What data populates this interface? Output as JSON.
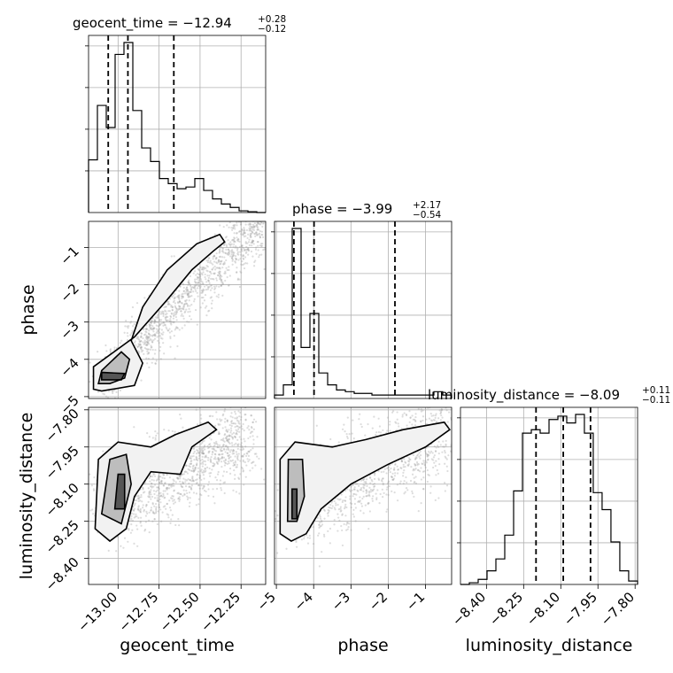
{
  "chart_data": {
    "type": "corner",
    "parameters": [
      "geocent_time",
      "phase",
      "luminosity_distance"
    ],
    "titles": [
      {
        "text": "geocent_time = −12.94",
        "upper": "+0.28",
        "lower": "−0.12"
      },
      {
        "text": "phase = −3.99",
        "upper": "+2.17",
        "lower": "−0.54"
      },
      {
        "text": "luminosity_distance = −8.09",
        "upper": "+0.11",
        "lower": "−0.11"
      }
    ],
    "axis_labels": {
      "x": [
        "geocent_time",
        "phase",
        "luminosity_distance"
      ],
      "y": [
        "phase",
        "luminosity_distance"
      ]
    },
    "ticks": {
      "geocent_time": {
        "values": [
          -13.0,
          -12.75,
          -12.5,
          -12.25
        ],
        "labels": [
          "−13.00",
          "−12.75",
          "−12.50",
          "−12.25"
        ]
      },
      "phase": {
        "values": [
          -5,
          -4,
          -3,
          -2,
          -1
        ],
        "labels": [
          "−5",
          "−4",
          "−3",
          "−2",
          "−1"
        ]
      },
      "luminosity_distance": {
        "values": [
          -8.4,
          -8.25,
          -8.1,
          -7.95,
          -7.8
        ],
        "labels": [
          "−8.40",
          "−8.25",
          "−8.10",
          "−7.95",
          "−7.80"
        ]
      }
    },
    "ranges": {
      "geocent_time": [
        -13.18,
        -12.1
      ],
      "phase": [
        -5.05,
        -0.3
      ],
      "luminosity_distance": [
        -8.505,
        -7.79
      ]
    },
    "histograms": [
      {
        "parameter": "geocent_time",
        "bin_edges": [
          -13.18,
          -13.126,
          -13.072,
          -13.018,
          -12.964,
          -12.91,
          -12.856,
          -12.802,
          -12.748,
          -12.694,
          -12.64,
          -12.586,
          -12.532,
          -12.478,
          -12.424,
          -12.37,
          -12.316,
          -12.262,
          -12.208,
          -12.154,
          -12.1
        ],
        "counts": [
          0.31,
          0.63,
          0.5,
          0.93,
          1.0,
          0.6,
          0.38,
          0.3,
          0.2,
          0.17,
          0.14,
          0.15,
          0.2,
          0.13,
          0.08,
          0.05,
          0.03,
          0.01,
          0.005,
          0.0
        ],
        "quantiles": [
          -13.06,
          -12.94,
          -12.66
        ]
      },
      {
        "parameter": "phase",
        "bin_edges": [
          -5.05,
          -4.8125,
          -4.575,
          -4.3375,
          -4.1,
          -3.8625,
          -3.625,
          -3.3875,
          -3.15,
          -2.9125,
          -2.675,
          -2.4375,
          -2.2,
          -1.9625,
          -1.725,
          -1.4875,
          -1.25,
          -1.0125,
          -0.775,
          -0.5375,
          -0.3
        ],
        "counts": [
          0.02,
          0.08,
          1.0,
          0.3,
          0.5,
          0.15,
          0.08,
          0.05,
          0.04,
          0.03,
          0.03,
          0.02,
          0.02,
          0.02,
          0.02,
          0.02,
          0.02,
          0.02,
          0.04,
          0.02
        ],
        "quantiles": [
          -4.53,
          -3.99,
          -1.82
        ]
      },
      {
        "parameter": "luminosity_distance",
        "bin_edges": [
          -8.505,
          -8.46925,
          -8.4335,
          -8.39775,
          -8.362,
          -8.32625,
          -8.2905,
          -8.25475,
          -8.219,
          -8.18325,
          -8.1475,
          -8.11175,
          -8.076,
          -8.04025,
          -8.00475,
          -7.969,
          -7.93325,
          -7.8975,
          -7.86175,
          -7.826,
          -7.79
        ],
        "counts": [
          0.0,
          0.01,
          0.03,
          0.08,
          0.15,
          0.29,
          0.55,
          0.89,
          0.91,
          0.89,
          0.97,
          0.99,
          0.95,
          1.0,
          0.89,
          0.54,
          0.44,
          0.25,
          0.08,
          0.02
        ],
        "quantiles": [
          -8.2,
          -8.09,
          -7.98
        ]
      }
    ],
    "density_2d": [
      {
        "x": "geocent_time",
        "y": "phase",
        "samples_description": "",
        "mode": [
          -13.09,
          -4.47
        ]
      },
      {
        "x": "geocent_time",
        "y": "luminosity_distance",
        "mode": [
          -12.98,
          -8.13
        ]
      },
      {
        "x": "phase",
        "y": "luminosity_distance",
        "mode": [
          -4.5,
          -8.2
        ]
      }
    ],
    "grid": true,
    "legend": "none"
  }
}
